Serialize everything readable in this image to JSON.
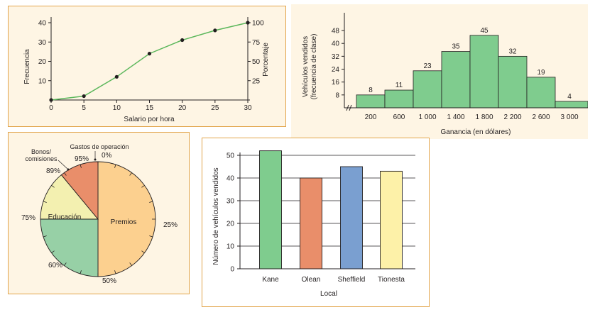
{
  "colors": {
    "panel_bg": "#fef5e4",
    "panel_border": "#e2a44a",
    "line": "#5bb75b",
    "hist_fill": "#7fcc8e",
    "pie_premios": "#fcd08f",
    "pie_educacion": "#97d0a6",
    "pie_bonos": "#f3f0b0",
    "pie_gastos": "#e98e6a",
    "bar_kane": "#7fcc8e",
    "bar_olean": "#e98e6a",
    "bar_sheffield": "#7a9fd0",
    "bar_tionesta": "#fdf1a8"
  },
  "chart_data": [
    {
      "type": "line",
      "xlabel": "Salario por hora",
      "ylabel": "Frecuencia",
      "y2label": "Porcentaje",
      "x": [
        0,
        5,
        10,
        15,
        20,
        25,
        30
      ],
      "y": [
        0,
        2,
        12,
        24,
        31,
        36,
        40
      ],
      "xticks": [
        "0",
        "5",
        "10",
        "15",
        "20",
        "25",
        "30"
      ],
      "yticks": [
        "40",
        "30",
        "20",
        "10"
      ],
      "y2ticks": [
        "100",
        "75",
        "50",
        "25"
      ],
      "xlim": [
        0,
        30
      ],
      "ylim": [
        0,
        40
      ],
      "grid": false
    },
    {
      "type": "bar",
      "xlabel": "Ganancia (en dólares)",
      "ylabel": "Vehículos vendidos",
      "ylabel2": "(frecuencia de clase)",
      "categories": [
        "200-600",
        "600-1 000",
        "1 000-1 400",
        "1 400-1 800",
        "1 800-2 200",
        "2 200-2 600",
        "2 600-3 000",
        "3 000-3 400"
      ],
      "values": [
        8,
        11,
        23,
        35,
        45,
        32,
        19,
        4
      ],
      "xticks": [
        "200",
        "600",
        "1 000",
        "1 400",
        "1 800",
        "2 200",
        "2 600",
        "3 000"
      ],
      "yticks": [
        "8",
        "16",
        "24",
        "32",
        "40",
        "48"
      ],
      "ylim": [
        0,
        50
      ],
      "grid": false
    },
    {
      "type": "pie",
      "slices": [
        {
          "label": "Premios",
          "value": 50
        },
        {
          "label": "Educación",
          "value": 25
        },
        {
          "label": "Bonos/ comisiones",
          "value": 14
        },
        {
          "label": "Gastos de operación",
          "value": 6
        }
      ],
      "label_premios": "Premios",
      "label_educacion": "Educación",
      "label_bonos_1": "Bonos/",
      "label_bonos_2": "comisiones",
      "label_gastos": "Gastos de operación",
      "pct_ticks": [
        "0%",
        "25%",
        "50%",
        "60%",
        "75%",
        "89%",
        "95%"
      ]
    },
    {
      "type": "bar",
      "xlabel": "Local",
      "ylabel": "Número de vehículos vendidos",
      "categories": [
        "Kane",
        "Olean",
        "Sheffield",
        "Tionesta"
      ],
      "values": [
        52,
        40,
        45,
        43
      ],
      "yticks": [
        "0",
        "10",
        "20",
        "30",
        "40",
        "50"
      ],
      "ylim": [
        0,
        60
      ],
      "grid": true
    }
  ]
}
